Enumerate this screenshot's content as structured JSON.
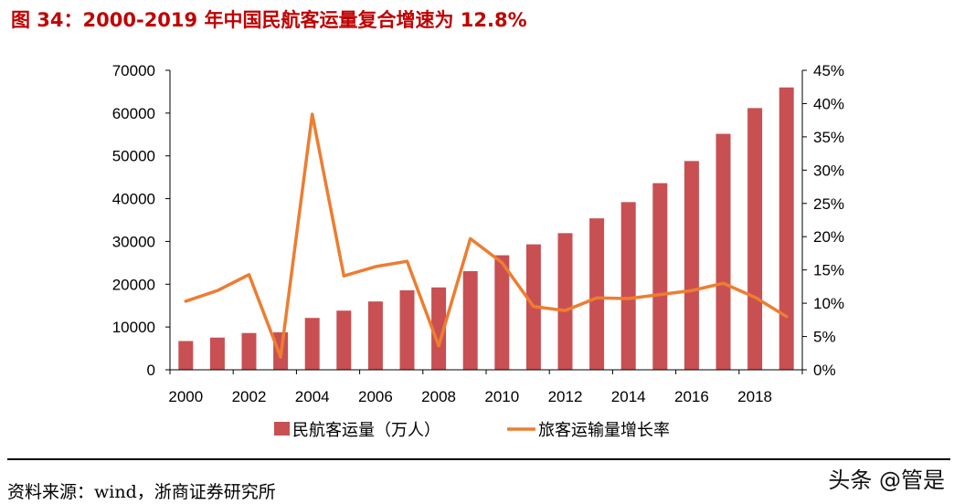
{
  "title": "图 34：2000-2019 年中国民航客运量复合增速为 12.8%",
  "source": "资料来源：wind，浙商证券研究所",
  "watermark": "头条 @管是",
  "chart_data": {
    "type": "bar+line",
    "categories": [
      "2000",
      "2001",
      "2002",
      "2003",
      "2004",
      "2005",
      "2006",
      "2007",
      "2008",
      "2009",
      "2010",
      "2011",
      "2012",
      "2013",
      "2014",
      "2015",
      "2016",
      "2017",
      "2018",
      "2019"
    ],
    "x_tick_labels": [
      "2000",
      "2002",
      "2004",
      "2006",
      "2008",
      "2010",
      "2012",
      "2014",
      "2016",
      "2018"
    ],
    "series": [
      {
        "name": "民航客运量（万人）",
        "type": "bar",
        "axis": "left",
        "color": "#c85052",
        "values": [
          6722,
          7524,
          8594,
          8759,
          12123,
          13827,
          15968,
          18576,
          19251,
          23052,
          26769,
          29317,
          31936,
          35397,
          39195,
          43618,
          48796,
          55156,
          61174,
          65993
        ]
      },
      {
        "name": "旅客运输量增长率",
        "type": "line",
        "axis": "right",
        "color": "#ed7d31",
        "values": [
          10.3,
          11.9,
          14.3,
          1.9,
          38.4,
          14.1,
          15.5,
          16.3,
          3.6,
          19.7,
          16.1,
          9.5,
          8.9,
          10.8,
          10.7,
          11.3,
          11.9,
          13.0,
          10.9,
          8.0
        ]
      }
    ],
    "y_left": {
      "range": [
        0,
        70000
      ],
      "ticks": [
        "0",
        "10000",
        "20000",
        "30000",
        "40000",
        "50000",
        "60000",
        "70000"
      ]
    },
    "y_right": {
      "range": [
        0,
        45
      ],
      "ticks": [
        "0%",
        "5%",
        "10%",
        "15%",
        "20%",
        "25%",
        "30%",
        "35%",
        "40%",
        "45%"
      ]
    },
    "grid": false,
    "legend_position": "bottom"
  }
}
